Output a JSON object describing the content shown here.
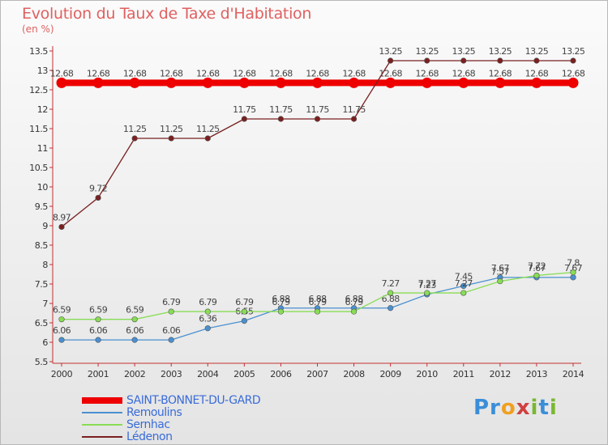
{
  "chart_data": {
    "type": "line",
    "title": "Evolution du Taux de Taxe d'Habitation",
    "ylabel": "(en %)",
    "xlabel": "",
    "x": [
      "2000",
      "2001",
      "2002",
      "2003",
      "2004",
      "2005",
      "2006",
      "2007",
      "2008",
      "2009",
      "2010",
      "2011",
      "2012",
      "2013",
      "2014"
    ],
    "ylim": [
      5.5,
      13.5
    ],
    "yticks": [
      "5.5",
      "6",
      "6.5",
      "7",
      "7.5",
      "8",
      "8.5",
      "9",
      "9.5",
      "10",
      "10.5",
      "11",
      "11.5",
      "12",
      "12.5",
      "13",
      "13.5"
    ],
    "grid": false,
    "series": [
      {
        "name": "SAINT-BONNET-DU-GARD",
        "color": "#ee0000",
        "values": [
          12.68,
          12.68,
          12.68,
          12.68,
          12.68,
          12.68,
          12.68,
          12.68,
          12.68,
          12.68,
          12.68,
          12.68,
          12.68,
          12.68,
          12.68
        ],
        "labels": [
          "12.68",
          "12.68",
          "12.68",
          "12.68",
          "12.68",
          "12.68",
          "12.68",
          "12.68",
          "12.68",
          "12.68",
          "12.68",
          "12.68",
          "12.68",
          "12.68",
          "12.68"
        ]
      },
      {
        "name": "Remoulins",
        "color": "#4a90d0",
        "values": [
          6.06,
          6.06,
          6.06,
          6.06,
          6.36,
          6.55,
          6.88,
          6.88,
          6.88,
          6.88,
          7.23,
          7.45,
          7.67,
          7.67,
          7.67
        ],
        "labels": [
          "6.06",
          "6.06",
          "6.06",
          "6.06",
          "6.36",
          "6.55",
          "6.88",
          "6.88",
          "6.88",
          "6.88",
          "7.23",
          "7.45",
          "7.67",
          "7.67",
          "7.67"
        ]
      },
      {
        "name": "Sernhac",
        "color": "#88dd55",
        "values": [
          6.59,
          6.59,
          6.59,
          6.79,
          6.79,
          6.79,
          6.79,
          6.79,
          6.79,
          7.27,
          7.27,
          7.27,
          7.57,
          7.72,
          7.8
        ],
        "labels": [
          "6.59",
          "6.59",
          "6.59",
          "6.79",
          "6.79",
          "6.79",
          "6.79",
          "6.79",
          "6.79",
          "7.27",
          "7.27",
          "7.27",
          "7.57",
          "7.72",
          "7.8"
        ]
      },
      {
        "name": "Lédenon",
        "color": "#7a2020",
        "values": [
          8.97,
          9.72,
          11.25,
          11.25,
          11.25,
          11.75,
          11.75,
          11.75,
          11.75,
          13.25,
          13.25,
          13.25,
          13.25,
          13.25,
          13.25
        ],
        "labels": [
          "8.97",
          "9.72",
          "11.25",
          "11.25",
          "11.25",
          "11.75",
          "11.75",
          "11.75",
          "11.75",
          "13.25",
          "13.25",
          "13.25",
          "13.25",
          "13.25",
          "13.25"
        ]
      }
    ]
  },
  "brand": {
    "parts": [
      "Pr",
      "o",
      "x",
      "i",
      "t",
      "i"
    ]
  }
}
